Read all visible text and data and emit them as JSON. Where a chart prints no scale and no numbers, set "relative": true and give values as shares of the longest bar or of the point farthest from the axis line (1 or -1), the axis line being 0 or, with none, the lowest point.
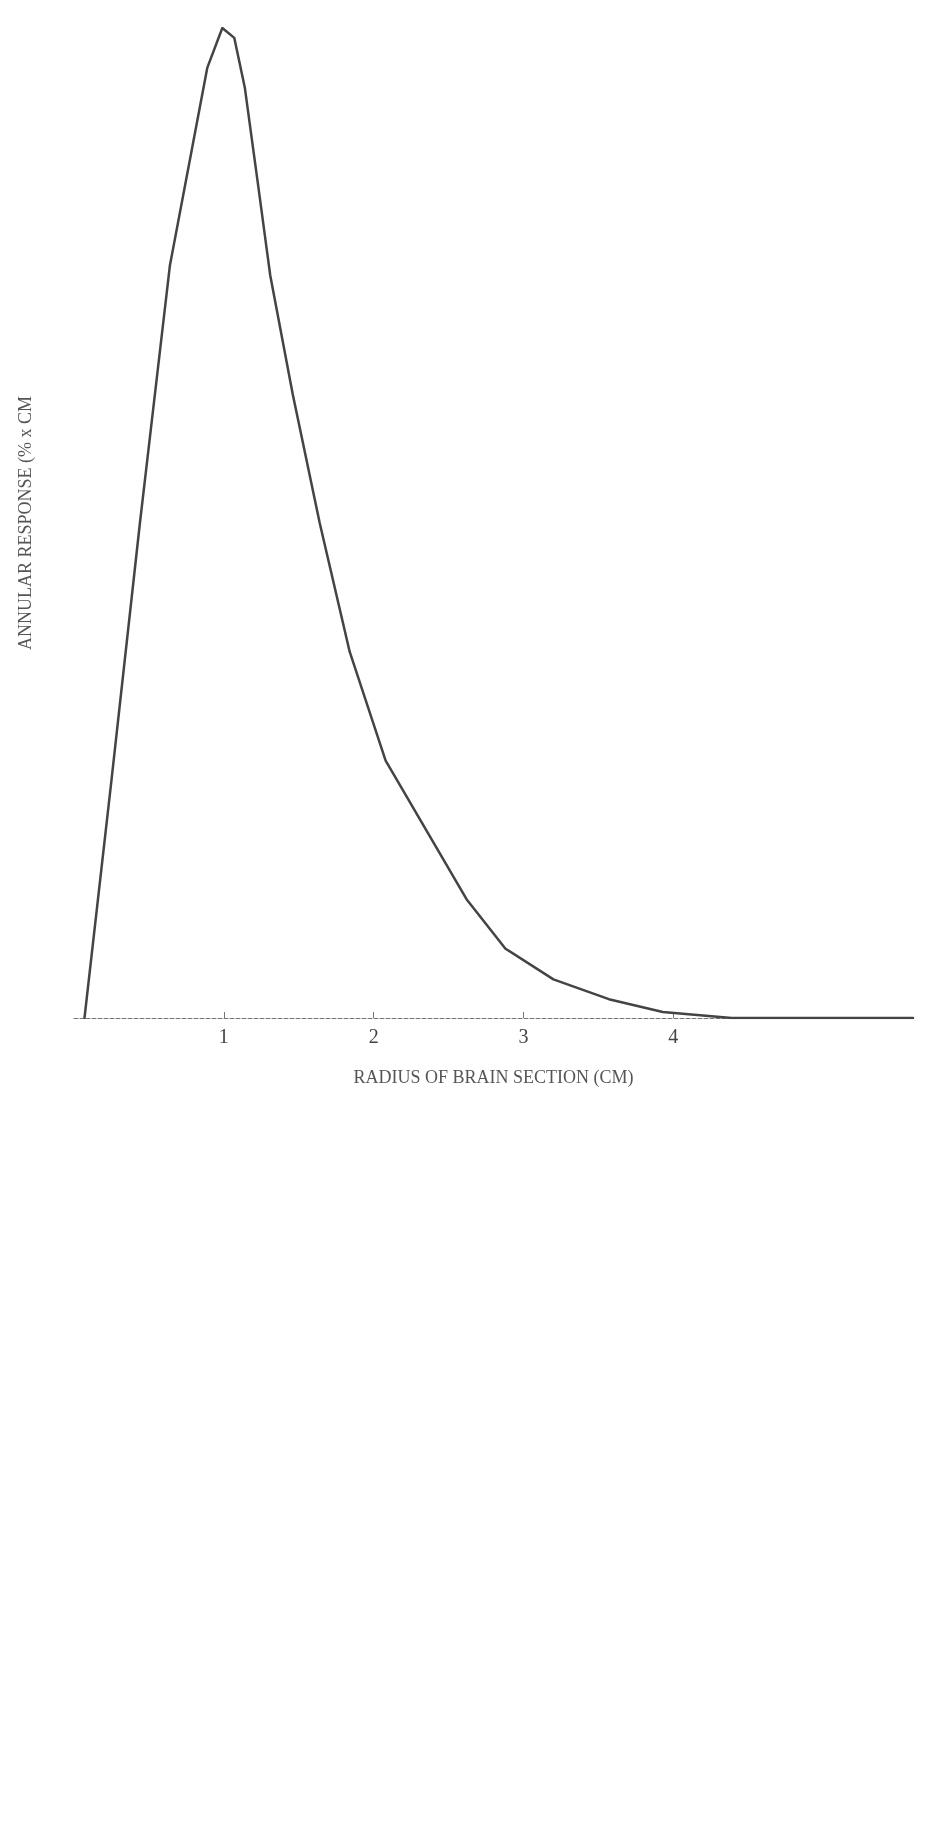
{
  "chart_data": {
    "type": "line",
    "xlabel": "RADIUS OF BRAIN SECTION (CM)",
    "ylabel": "ANNULAR RESPONSE (% x CM",
    "relative": true,
    "x": [
      0.07,
      0.25,
      0.44,
      0.64,
      0.79,
      0.89,
      0.99,
      1.07,
      1.14,
      1.23,
      1.31,
      1.46,
      1.64,
      1.84,
      2.08,
      2.35,
      2.62,
      2.88,
      3.2,
      3.57,
      3.93,
      4.39,
      5.07,
      5.6
    ],
    "series": [
      {
        "color": "#444444",
        "values": [
          0,
          0.24,
          0.5,
          0.76,
          0.88,
          0.96,
          1,
          0.99,
          0.94,
          0.84,
          0.75,
          0.63,
          0.5,
          0.37,
          0.26,
          0.19,
          0.12,
          0.07,
          0.039,
          0.019,
          0.006,
          0,
          0,
          0
        ]
      }
    ],
    "xlim": [
      0,
      5.6
    ],
    "xticks": [
      1,
      2,
      3,
      4
    ],
    "marker": "none",
    "line_style": "solid",
    "grid": false
  }
}
